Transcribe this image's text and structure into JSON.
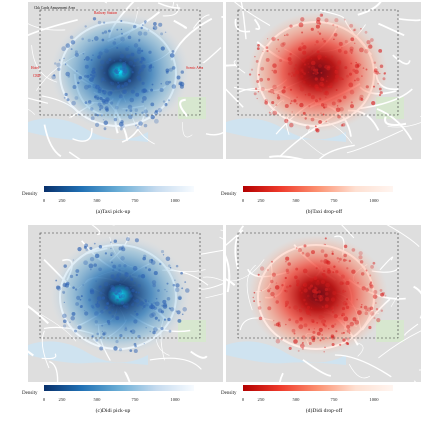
{
  "colors": {
    "blue_low": "#c6dbef",
    "blue_high": "#08306b",
    "red_low": "#fcbba1",
    "red_high": "#b30000",
    "road": "#ffffff",
    "background": "#dedede",
    "water": "#cfe3f0",
    "park": "#d7e7cf"
  },
  "panels": [
    {
      "id": "a",
      "caption": "(a)Taxi pick-up",
      "scheme": "blue",
      "legend": {
        "title": "Density",
        "ticks": [
          "0",
          "250",
          "500",
          "750",
          "1000"
        ]
      },
      "annotations": [
        {
          "text": "Chk Cards Amusement Area",
          "color": "dark"
        },
        {
          "text": "Railway Station",
          "color": "red"
        },
        {
          "text": "Hotel",
          "color": "red"
        },
        {
          "text": "Scenic Area",
          "color": "red"
        },
        {
          "text": "CBD",
          "color": "red"
        }
      ]
    },
    {
      "id": "b",
      "caption": "(b)Taxi drop-off",
      "scheme": "red",
      "legend": {
        "title": "Density",
        "ticks": [
          "0",
          "250",
          "500",
          "750",
          "1000"
        ]
      },
      "annotations": []
    },
    {
      "id": "c",
      "caption": "(c)Didi pick-up",
      "scheme": "blue",
      "legend": {
        "title": "Density",
        "ticks": [
          "0",
          "250",
          "500",
          "750",
          "1000"
        ]
      },
      "annotations": []
    },
    {
      "id": "d",
      "caption": "(d)Didi drop-off",
      "scheme": "red",
      "legend": {
        "title": "Density",
        "ticks": [
          "0",
          "250",
          "500",
          "750",
          "1000"
        ]
      },
      "annotations": []
    }
  ]
}
